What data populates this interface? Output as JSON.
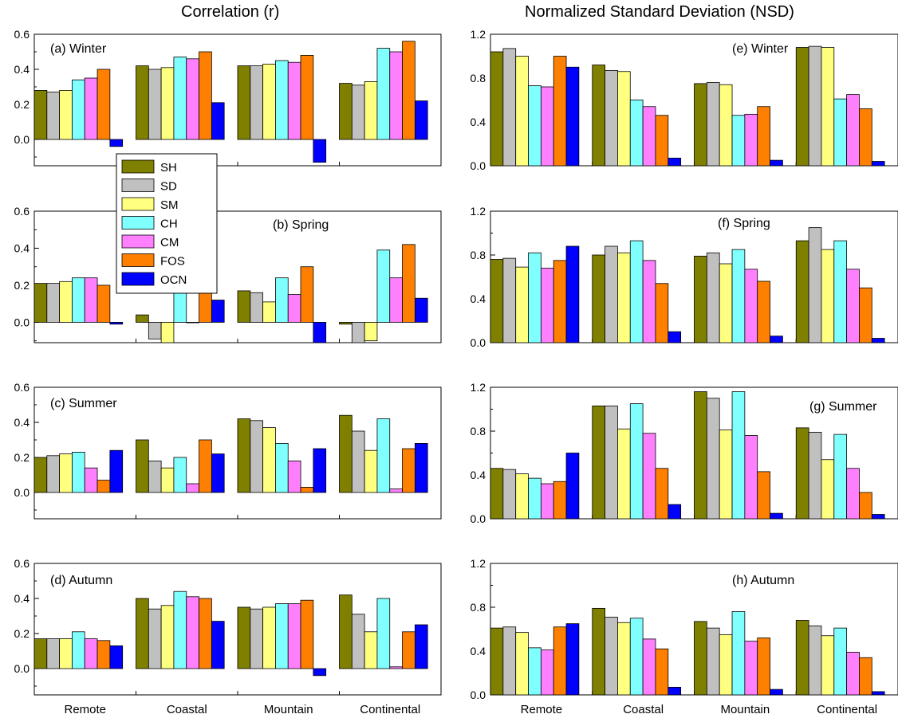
{
  "column_titles": {
    "left": "Correlation (r)",
    "right": "Normalized Standard Deviation (NSD)"
  },
  "series_colors": {
    "SH": "#7f7f00",
    "SD": "#c0c0c0",
    "SM": "#ffff80",
    "CH": "#80ffff",
    "CM": "#ff80ff",
    "FOS": "#ff8000",
    "OCN": "#0000ff"
  },
  "legend": {
    "placement": "left-panels, spanning (a) and (b)",
    "entries": [
      "SH",
      "SD",
      "SM",
      "CH",
      "CM",
      "FOS",
      "OCN"
    ]
  },
  "chart_data": [
    {
      "type": "bar",
      "panel": "(a) Winter",
      "column": "left",
      "categories": [
        "Remote",
        "Coastal",
        "Mountain",
        "Continental"
      ],
      "ylim": [
        -0.15,
        0.6
      ],
      "yticks": [
        "0.0",
        "0.2",
        "0.4",
        "0.6"
      ],
      "series": [
        {
          "name": "SH",
          "values": [
            0.28,
            0.42,
            0.42,
            0.32
          ]
        },
        {
          "name": "SD",
          "values": [
            0.27,
            0.4,
            0.42,
            0.31
          ]
        },
        {
          "name": "SM",
          "values": [
            0.28,
            0.41,
            0.43,
            0.33
          ]
        },
        {
          "name": "CH",
          "values": [
            0.34,
            0.47,
            0.45,
            0.52
          ]
        },
        {
          "name": "CM",
          "values": [
            0.35,
            0.46,
            0.44,
            0.5
          ]
        },
        {
          "name": "FOS",
          "values": [
            0.4,
            0.5,
            0.48,
            0.56
          ]
        },
        {
          "name": "OCN",
          "values": [
            -0.04,
            0.21,
            -0.13,
            0.22
          ]
        }
      ]
    },
    {
      "type": "bar",
      "panel": "(b) Spring",
      "column": "left",
      "categories": [
        "Remote",
        "Coastal",
        "Mountain",
        "Continental"
      ],
      "ylim": [
        -0.11,
        0.6
      ],
      "yticks": [
        "0.0",
        "0.2",
        "0.4",
        "0.6"
      ],
      "series": [
        {
          "name": "SH",
          "values": [
            0.21,
            0.04,
            0.17,
            -0.01
          ]
        },
        {
          "name": "SD",
          "values": [
            0.21,
            -0.09,
            0.16,
            -0.11
          ]
        },
        {
          "name": "SM",
          "values": [
            0.22,
            -0.11,
            0.11,
            -0.1
          ]
        },
        {
          "name": "CH",
          "values": [
            0.24,
            0.16,
            0.24,
            0.39
          ]
        },
        {
          "name": "CM",
          "values": [
            0.24,
            0.0,
            0.15,
            0.24
          ]
        },
        {
          "name": "FOS",
          "values": [
            0.2,
            0.4,
            0.3,
            0.42
          ]
        },
        {
          "name": "OCN",
          "values": [
            -0.01,
            0.12,
            -0.11,
            0.13
          ]
        }
      ]
    },
    {
      "type": "bar",
      "panel": "(c) Summer",
      "column": "left",
      "categories": [
        "Remote",
        "Coastal",
        "Mountain",
        "Continental"
      ],
      "ylim": [
        -0.15,
        0.6
      ],
      "yticks": [
        "0.0",
        "0.2",
        "0.4",
        "0.6"
      ],
      "series": [
        {
          "name": "SH",
          "values": [
            0.2,
            0.3,
            0.42,
            0.44
          ]
        },
        {
          "name": "SD",
          "values": [
            0.21,
            0.18,
            0.41,
            0.35
          ]
        },
        {
          "name": "SM",
          "values": [
            0.22,
            0.14,
            0.37,
            0.24
          ]
        },
        {
          "name": "CH",
          "values": [
            0.23,
            0.2,
            0.28,
            0.42
          ]
        },
        {
          "name": "CM",
          "values": [
            0.14,
            0.05,
            0.18,
            0.02
          ]
        },
        {
          "name": "FOS",
          "values": [
            0.07,
            0.3,
            0.03,
            0.25
          ]
        },
        {
          "name": "OCN",
          "values": [
            0.24,
            0.22,
            0.25,
            0.28
          ]
        }
      ]
    },
    {
      "type": "bar",
      "panel": "(d) Autumn",
      "column": "left",
      "categories": [
        "Remote",
        "Coastal",
        "Mountain",
        "Continental"
      ],
      "ylim": [
        -0.15,
        0.6
      ],
      "yticks": [
        "0.0",
        "0.2",
        "0.4",
        "0.6"
      ],
      "series": [
        {
          "name": "SH",
          "values": [
            0.17,
            0.4,
            0.35,
            0.42
          ]
        },
        {
          "name": "SD",
          "values": [
            0.17,
            0.34,
            0.34,
            0.31
          ]
        },
        {
          "name": "SM",
          "values": [
            0.17,
            0.36,
            0.35,
            0.21
          ]
        },
        {
          "name": "CH",
          "values": [
            0.21,
            0.44,
            0.37,
            0.4
          ]
        },
        {
          "name": "CM",
          "values": [
            0.17,
            0.41,
            0.37,
            0.01
          ]
        },
        {
          "name": "FOS",
          "values": [
            0.16,
            0.4,
            0.39,
            0.21
          ]
        },
        {
          "name": "OCN",
          "values": [
            0.13,
            0.27,
            -0.04,
            0.25
          ]
        }
      ]
    },
    {
      "type": "bar",
      "panel": "(e) Winter",
      "column": "right",
      "categories": [
        "Remote",
        "Coastal",
        "Mountain",
        "Continental"
      ],
      "ylim": [
        0,
        1.2
      ],
      "yticks": [
        "0.0",
        "0.4",
        "0.8",
        "1.2"
      ],
      "series": [
        {
          "name": "SH",
          "values": [
            1.04,
            0.92,
            0.75,
            1.08
          ]
        },
        {
          "name": "SD",
          "values": [
            1.07,
            0.87,
            0.76,
            1.09
          ]
        },
        {
          "name": "SM",
          "values": [
            1.0,
            0.86,
            0.74,
            1.08
          ]
        },
        {
          "name": "CH",
          "values": [
            0.73,
            0.6,
            0.46,
            0.61
          ]
        },
        {
          "name": "CM",
          "values": [
            0.72,
            0.54,
            0.47,
            0.65
          ]
        },
        {
          "name": "FOS",
          "values": [
            1.0,
            0.46,
            0.54,
            0.52
          ]
        },
        {
          "name": "OCN",
          "values": [
            0.9,
            0.07,
            0.05,
            0.04
          ]
        }
      ]
    },
    {
      "type": "bar",
      "panel": "(f) Spring",
      "column": "right",
      "categories": [
        "Remote",
        "Coastal",
        "Mountain",
        "Continental"
      ],
      "ylim": [
        0,
        1.2
      ],
      "yticks": [
        "0.0",
        "0.4",
        "0.8",
        "1.2"
      ],
      "series": [
        {
          "name": "SH",
          "values": [
            0.76,
            0.8,
            0.79,
            0.93
          ]
        },
        {
          "name": "SD",
          "values": [
            0.77,
            0.88,
            0.82,
            1.05
          ]
        },
        {
          "name": "SM",
          "values": [
            0.69,
            0.82,
            0.72,
            0.85
          ]
        },
        {
          "name": "CH",
          "values": [
            0.82,
            0.93,
            0.85,
            0.93
          ]
        },
        {
          "name": "CM",
          "values": [
            0.68,
            0.75,
            0.67,
            0.67
          ]
        },
        {
          "name": "FOS",
          "values": [
            0.75,
            0.54,
            0.56,
            0.5
          ]
        },
        {
          "name": "OCN",
          "values": [
            0.88,
            0.1,
            0.06,
            0.04
          ]
        }
      ]
    },
    {
      "type": "bar",
      "panel": "(g) Summer",
      "column": "right",
      "categories": [
        "Remote",
        "Coastal",
        "Mountain",
        "Continental"
      ],
      "ylim": [
        0,
        1.2
      ],
      "yticks": [
        "0.0",
        "0.4",
        "0.8",
        "1.2"
      ],
      "series": [
        {
          "name": "SH",
          "values": [
            0.46,
            1.03,
            1.16,
            0.83
          ]
        },
        {
          "name": "SD",
          "values": [
            0.45,
            1.03,
            1.1,
            0.79
          ]
        },
        {
          "name": "SM",
          "values": [
            0.41,
            0.82,
            0.81,
            0.54
          ]
        },
        {
          "name": "CH",
          "values": [
            0.37,
            1.05,
            1.16,
            0.77
          ]
        },
        {
          "name": "CM",
          "values": [
            0.32,
            0.78,
            0.76,
            0.46
          ]
        },
        {
          "name": "FOS",
          "values": [
            0.34,
            0.46,
            0.43,
            0.24
          ]
        },
        {
          "name": "OCN",
          "values": [
            0.6,
            0.13,
            0.05,
            0.04
          ]
        }
      ]
    },
    {
      "type": "bar",
      "panel": "(h) Autumn",
      "column": "right",
      "categories": [
        "Remote",
        "Coastal",
        "Mountain",
        "Continental"
      ],
      "ylim": [
        0,
        1.2
      ],
      "yticks": [
        "0.0",
        "0.4",
        "0.8",
        "1.2"
      ],
      "series": [
        {
          "name": "SH",
          "values": [
            0.61,
            0.79,
            0.67,
            0.68
          ]
        },
        {
          "name": "SD",
          "values": [
            0.62,
            0.71,
            0.61,
            0.63
          ]
        },
        {
          "name": "SM",
          "values": [
            0.57,
            0.66,
            0.55,
            0.54
          ]
        },
        {
          "name": "CH",
          "values": [
            0.43,
            0.7,
            0.76,
            0.61
          ]
        },
        {
          "name": "CM",
          "values": [
            0.41,
            0.51,
            0.49,
            0.39
          ]
        },
        {
          "name": "FOS",
          "values": [
            0.62,
            0.42,
            0.52,
            0.34
          ]
        },
        {
          "name": "OCN",
          "values": [
            0.65,
            0.07,
            0.05,
            0.03
          ]
        }
      ]
    }
  ]
}
